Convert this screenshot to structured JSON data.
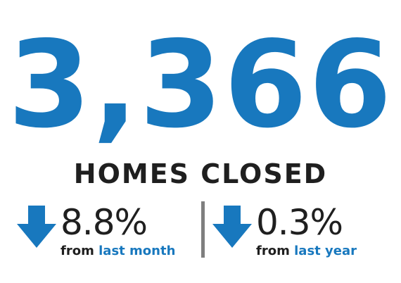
{
  "metric": {
    "value": "3,366",
    "label": "HOMES CLOSED"
  },
  "stats": [
    {
      "direction": "down",
      "icon": "down-arrow-icon",
      "percent": "8.8%",
      "prefix": "from",
      "period": "last month"
    },
    {
      "direction": "down",
      "icon": "down-arrow-icon",
      "percent": "0.3%",
      "prefix": "from",
      "period": "last year"
    }
  ],
  "colors": {
    "accent": "#1878be",
    "text": "#1f1f1f",
    "divider": "#7f7f7f"
  }
}
